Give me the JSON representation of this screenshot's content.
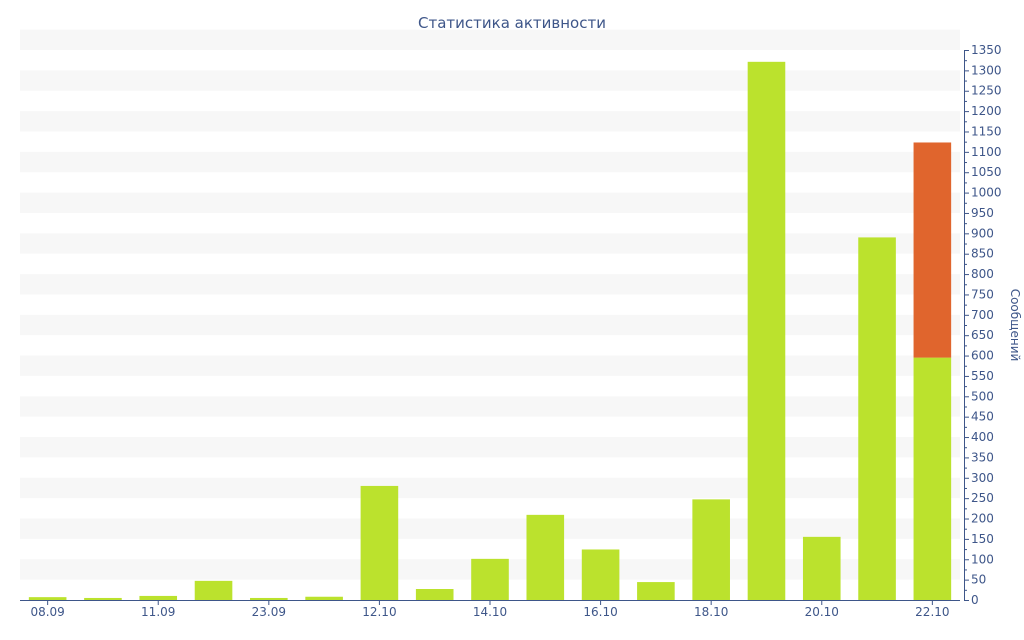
{
  "colors": {
    "primary_bar": "#bbe22d",
    "secondary_bar": "#e0652d",
    "axis": "#3e5689",
    "grid_band": "#f7f7f7"
  },
  "chart_data": {
    "type": "bar",
    "title": "Статистика активности",
    "ylabel": "Сообщений",
    "xlabel": "",
    "ylim": [
      0,
      1350
    ],
    "ytick_step": 50,
    "y_axis_position": "right",
    "stacked": true,
    "grid": "alternating horizontal bands",
    "categories": [
      "08.09",
      "",
      "11.09",
      "",
      "23.09",
      "",
      "12.10",
      "",
      "14.10",
      "",
      "16.10",
      "",
      "18.10",
      "",
      "20.10",
      "",
      "22.10"
    ],
    "series": [
      {
        "color": "#bbe22d",
        "values": [
          7,
          5,
          10,
          47,
          5,
          8,
          280,
          27,
          101,
          209,
          124,
          44,
          247,
          1321,
          155,
          890,
          595
        ]
      },
      {
        "color": "#e0652d",
        "values": [
          0,
          0,
          0,
          0,
          0,
          0,
          0,
          0,
          0,
          0,
          0,
          0,
          0,
          0,
          0,
          0,
          528
        ]
      }
    ]
  }
}
